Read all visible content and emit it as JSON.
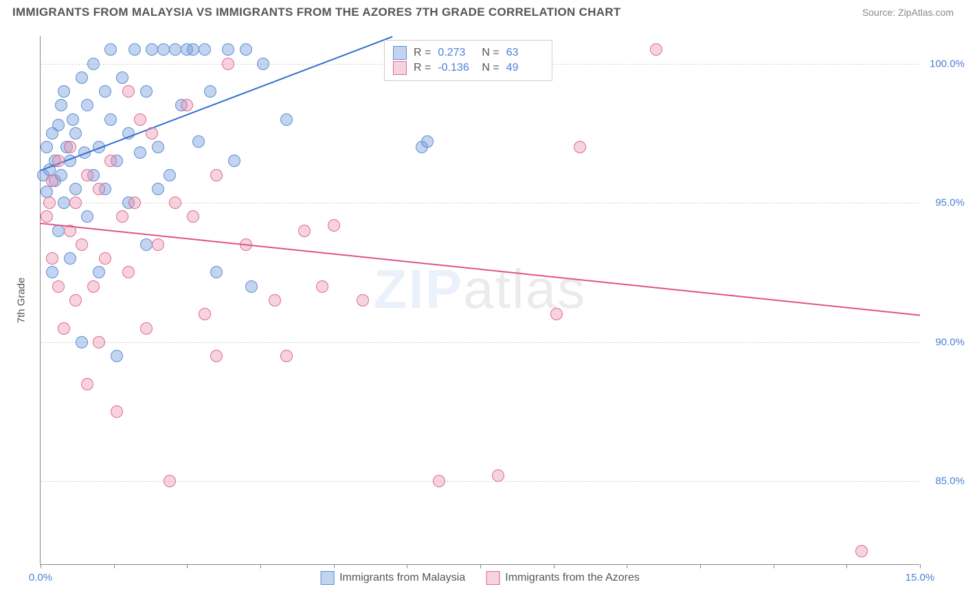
{
  "header": {
    "title": "IMMIGRANTS FROM MALAYSIA VS IMMIGRANTS FROM THE AZORES 7TH GRADE CORRELATION CHART",
    "source": "Source: ZipAtlas.com"
  },
  "chart": {
    "type": "scatter",
    "y_axis_label": "7th Grade",
    "background_color": "#ffffff",
    "grid_color": "#d8d8d8",
    "x_min": 0.0,
    "x_max": 15.0,
    "y_min": 82.0,
    "y_max": 101.0,
    "x_ticks": [
      0.0,
      1.25,
      2.5,
      3.75,
      5.0,
      6.25,
      7.5,
      8.75,
      10.0,
      11.25,
      12.5,
      13.75,
      15.0
    ],
    "x_range_labels": {
      "min": "0.0%",
      "max": "15.0%"
    },
    "y_ticks": [
      {
        "v": 85.0,
        "label": "85.0%"
      },
      {
        "v": 90.0,
        "label": "90.0%"
      },
      {
        "v": 95.0,
        "label": "95.0%"
      },
      {
        "v": 100.0,
        "label": "100.0%"
      }
    ],
    "watermark": {
      "part1": "ZIP",
      "part2": "atlas"
    },
    "series": [
      {
        "key": "malaysia",
        "label": "Immigrants from Malaysia",
        "fill": "rgba(120,160,220,0.45)",
        "stroke": "#5b8ed6",
        "line_color": "#2e6dd0",
        "r_label": "R =",
        "r_value": "0.273",
        "n_label": "N =",
        "n_value": "63",
        "trend": {
          "x1": 0.0,
          "y1": 96.2,
          "x2": 6.0,
          "y2": 101.0
        },
        "points": [
          [
            0.05,
            96.0
          ],
          [
            0.1,
            95.4
          ],
          [
            0.1,
            97.0
          ],
          [
            0.15,
            96.2
          ],
          [
            0.2,
            97.5
          ],
          [
            0.2,
            92.5
          ],
          [
            0.25,
            95.8
          ],
          [
            0.25,
            96.5
          ],
          [
            0.3,
            94.0
          ],
          [
            0.3,
            97.8
          ],
          [
            0.35,
            98.5
          ],
          [
            0.35,
            96.0
          ],
          [
            0.4,
            95.0
          ],
          [
            0.4,
            99.0
          ],
          [
            0.45,
            97.0
          ],
          [
            0.5,
            93.0
          ],
          [
            0.5,
            96.5
          ],
          [
            0.55,
            98.0
          ],
          [
            0.6,
            97.5
          ],
          [
            0.6,
            95.5
          ],
          [
            0.7,
            99.5
          ],
          [
            0.7,
            90.0
          ],
          [
            0.75,
            96.8
          ],
          [
            0.8,
            98.5
          ],
          [
            0.8,
            94.5
          ],
          [
            0.9,
            100.0
          ],
          [
            0.9,
            96.0
          ],
          [
            1.0,
            97.0
          ],
          [
            1.0,
            92.5
          ],
          [
            1.1,
            99.0
          ],
          [
            1.1,
            95.5
          ],
          [
            1.2,
            100.5
          ],
          [
            1.2,
            98.0
          ],
          [
            1.3,
            96.5
          ],
          [
            1.3,
            89.5
          ],
          [
            1.4,
            99.5
          ],
          [
            1.5,
            97.5
          ],
          [
            1.5,
            95.0
          ],
          [
            1.6,
            100.5
          ],
          [
            1.7,
            96.8
          ],
          [
            1.8,
            99.0
          ],
          [
            1.8,
            93.5
          ],
          [
            1.9,
            100.5
          ],
          [
            2.0,
            97.0
          ],
          [
            2.0,
            95.5
          ],
          [
            2.1,
            100.5
          ],
          [
            2.2,
            96.0
          ],
          [
            2.3,
            100.5
          ],
          [
            2.4,
            98.5
          ],
          [
            2.5,
            100.5
          ],
          [
            2.6,
            100.5
          ],
          [
            2.7,
            97.2
          ],
          [
            2.8,
            100.5
          ],
          [
            2.9,
            99.0
          ],
          [
            3.0,
            92.5
          ],
          [
            3.2,
            100.5
          ],
          [
            3.3,
            96.5
          ],
          [
            3.5,
            100.5
          ],
          [
            3.6,
            92.0
          ],
          [
            3.8,
            100.0
          ],
          [
            4.2,
            98.0
          ],
          [
            6.5,
            97.0
          ],
          [
            6.6,
            97.2
          ]
        ]
      },
      {
        "key": "azores",
        "label": "Immigrants from the Azores",
        "fill": "rgba(235,145,175,0.40)",
        "stroke": "#e06892",
        "line_color": "#e05285",
        "r_label": "R =",
        "r_value": "-0.136",
        "n_label": "N =",
        "n_value": "49",
        "trend": {
          "x1": 0.0,
          "y1": 94.3,
          "x2": 15.0,
          "y2": 91.0
        },
        "points": [
          [
            0.1,
            94.5
          ],
          [
            0.2,
            95.8
          ],
          [
            0.2,
            93.0
          ],
          [
            0.3,
            92.0
          ],
          [
            0.3,
            96.5
          ],
          [
            0.4,
            90.5
          ],
          [
            0.5,
            94.0
          ],
          [
            0.5,
            97.0
          ],
          [
            0.6,
            91.5
          ],
          [
            0.6,
            95.0
          ],
          [
            0.7,
            93.5
          ],
          [
            0.8,
            88.5
          ],
          [
            0.8,
            96.0
          ],
          [
            0.9,
            92.0
          ],
          [
            1.0,
            90.0
          ],
          [
            1.0,
            95.5
          ],
          [
            1.1,
            93.0
          ],
          [
            1.2,
            96.5
          ],
          [
            1.3,
            87.5
          ],
          [
            1.4,
            94.5
          ],
          [
            1.5,
            99.0
          ],
          [
            1.5,
            92.5
          ],
          [
            1.6,
            95.0
          ],
          [
            1.8,
            90.5
          ],
          [
            1.9,
            97.5
          ],
          [
            2.0,
            93.5
          ],
          [
            2.2,
            85.0
          ],
          [
            2.3,
            95.0
          ],
          [
            2.5,
            98.5
          ],
          [
            2.6,
            94.5
          ],
          [
            2.8,
            91.0
          ],
          [
            3.0,
            89.5
          ],
          [
            3.0,
            96.0
          ],
          [
            3.2,
            100.0
          ],
          [
            3.5,
            93.5
          ],
          [
            4.0,
            91.5
          ],
          [
            4.2,
            89.5
          ],
          [
            4.5,
            94.0
          ],
          [
            4.8,
            92.0
          ],
          [
            5.0,
            94.2
          ],
          [
            5.5,
            91.5
          ],
          [
            6.8,
            85.0
          ],
          [
            7.8,
            85.2
          ],
          [
            8.8,
            91.0
          ],
          [
            9.2,
            97.0
          ],
          [
            10.5,
            100.5
          ],
          [
            14.0,
            82.5
          ],
          [
            1.7,
            98.0
          ],
          [
            0.15,
            95.0
          ]
        ]
      }
    ]
  }
}
